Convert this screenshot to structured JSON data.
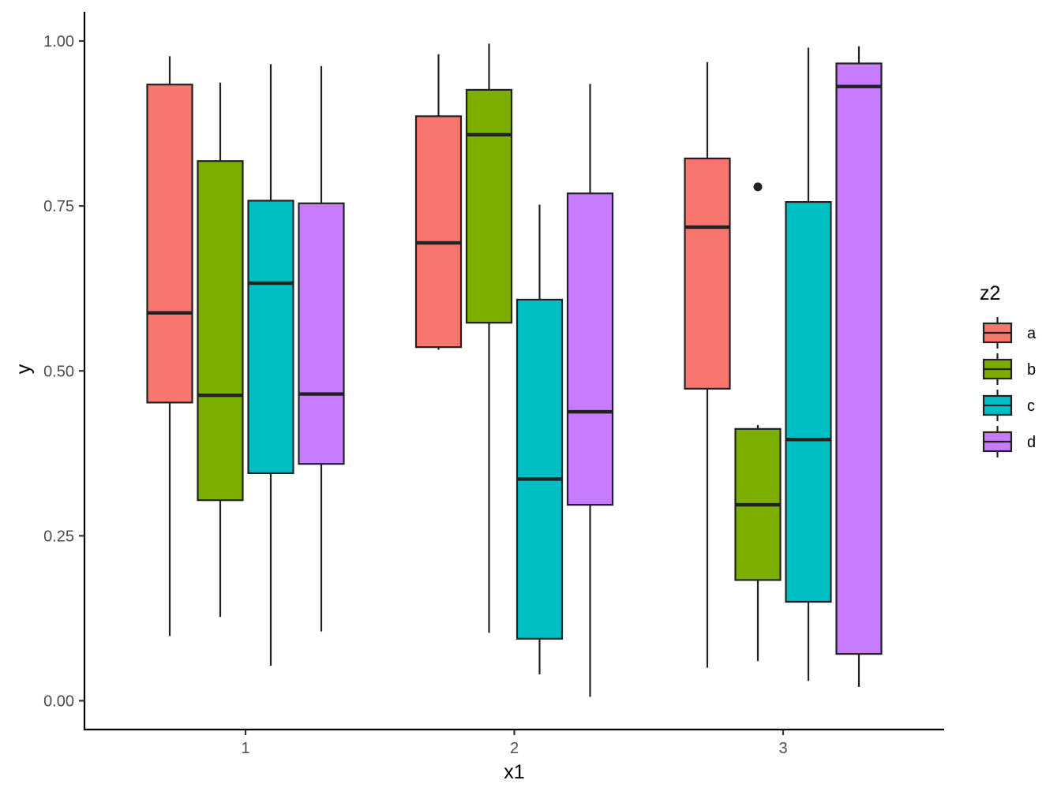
{
  "chart_data": {
    "type": "boxplot",
    "title": "",
    "xlabel": "x1",
    "ylabel": "y",
    "ylim": [
      -0.043,
      1.044
    ],
    "y_ticks": [
      0.0,
      0.25,
      0.5,
      0.75,
      1.0
    ],
    "y_tick_labels": [
      "0.00",
      "0.25",
      "0.50",
      "0.75",
      "1.00"
    ],
    "categories": [
      "1",
      "2",
      "3"
    ],
    "legend": {
      "title": "z2",
      "position": "right",
      "entries": [
        "a",
        "b",
        "c",
        "d"
      ]
    },
    "colors": {
      "a": "#F8766D",
      "b": "#7CAE00",
      "c": "#00BFC4",
      "d": "#C77CFF",
      "outline": "#222222"
    },
    "series": [
      {
        "name": "a",
        "boxes": [
          {
            "category": "1",
            "whisker_low": 0.098,
            "q1": 0.452,
            "median": 0.588,
            "q3": 0.934,
            "whisker_high": 0.977,
            "outliers": []
          },
          {
            "category": "2",
            "whisker_low": 0.532,
            "q1": 0.536,
            "median": 0.694,
            "q3": 0.886,
            "whisker_high": 0.98,
            "outliers": []
          },
          {
            "category": "3",
            "whisker_low": 0.05,
            "q1": 0.473,
            "median": 0.718,
            "q3": 0.822,
            "whisker_high": 0.968,
            "outliers": []
          }
        ]
      },
      {
        "name": "b",
        "boxes": [
          {
            "category": "1",
            "whisker_low": 0.127,
            "q1": 0.304,
            "median": 0.463,
            "q3": 0.818,
            "whisker_high": 0.937,
            "outliers": []
          },
          {
            "category": "2",
            "whisker_low": 0.103,
            "q1": 0.573,
            "median": 0.858,
            "q3": 0.926,
            "whisker_high": 0.996,
            "outliers": []
          },
          {
            "category": "3",
            "whisker_low": 0.06,
            "q1": 0.183,
            "median": 0.297,
            "q3": 0.412,
            "whisker_high": 0.418,
            "outliers": [
              0.779
            ]
          }
        ]
      },
      {
        "name": "c",
        "boxes": [
          {
            "category": "1",
            "whisker_low": 0.053,
            "q1": 0.345,
            "median": 0.633,
            "q3": 0.758,
            "whisker_high": 0.965,
            "outliers": []
          },
          {
            "category": "2",
            "whisker_low": 0.04,
            "q1": 0.094,
            "median": 0.336,
            "q3": 0.608,
            "whisker_high": 0.752,
            "outliers": []
          },
          {
            "category": "3",
            "whisker_low": 0.03,
            "q1": 0.15,
            "median": 0.396,
            "q3": 0.756,
            "whisker_high": 0.99,
            "outliers": []
          }
        ]
      },
      {
        "name": "d",
        "boxes": [
          {
            "category": "1",
            "whisker_low": 0.105,
            "q1": 0.359,
            "median": 0.465,
            "q3": 0.754,
            "whisker_high": 0.962,
            "outliers": []
          },
          {
            "category": "2",
            "whisker_low": 0.006,
            "q1": 0.297,
            "median": 0.438,
            "q3": 0.769,
            "whisker_high": 0.935,
            "outliers": []
          },
          {
            "category": "3",
            "whisker_low": 0.021,
            "q1": 0.071,
            "median": 0.931,
            "q3": 0.966,
            "whisker_high": 0.992,
            "outliers": []
          }
        ]
      }
    ]
  }
}
